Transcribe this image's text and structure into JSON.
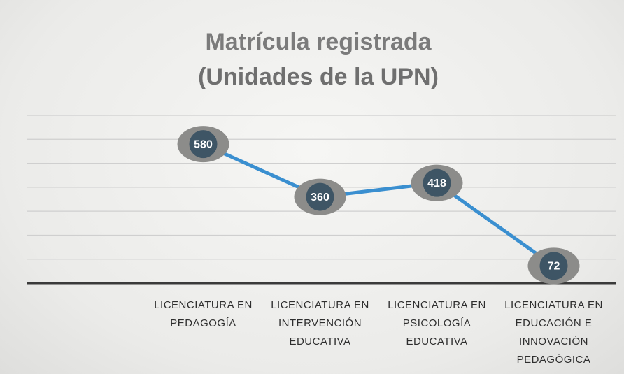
{
  "chart_data": {
    "type": "line",
    "title": [
      "Matrícula registrada",
      "(Unidades de la UPN)"
    ],
    "categories": [
      "LICENCIATURA EN PEDAGOGÍA",
      "LICENCIATURA EN INTERVENCIÓN EDUCATIVA",
      "LICENCIATURA EN PSICOLOGÍA EDUCATIVA",
      "LICENCIATURA EN EDUCACIÓN E INNOVACIÓN PEDAGÓGICA"
    ],
    "values": [
      580,
      360,
      418,
      72
    ],
    "color": "#3a8fd0",
    "ylim": [
      0,
      700
    ],
    "yticks": [
      0,
      100,
      200,
      300,
      400,
      500,
      600,
      700
    ],
    "grid": true
  }
}
